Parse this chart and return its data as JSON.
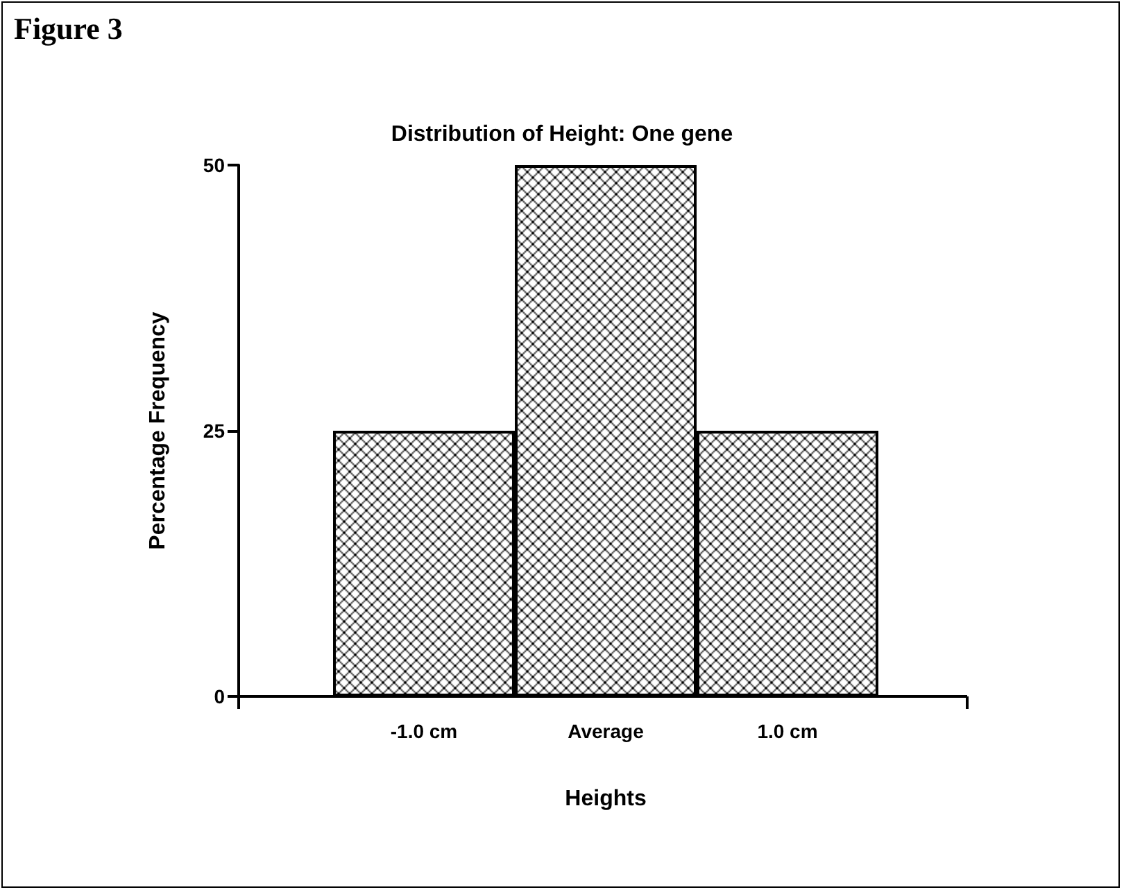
{
  "chart_data": {
    "type": "bar",
    "title": "Distribution of Height: One gene",
    "annotations": [
      "Figure 3"
    ],
    "xlabel": "Heights",
    "ylabel": "Percentage Frequency",
    "categories": [
      "-1.0 cm",
      "Average",
      "1.0 cm"
    ],
    "values": [
      25,
      50,
      25
    ],
    "color": "#000000",
    "ylim": [
      0,
      50
    ],
    "yticks": [
      0,
      25,
      50
    ]
  }
}
